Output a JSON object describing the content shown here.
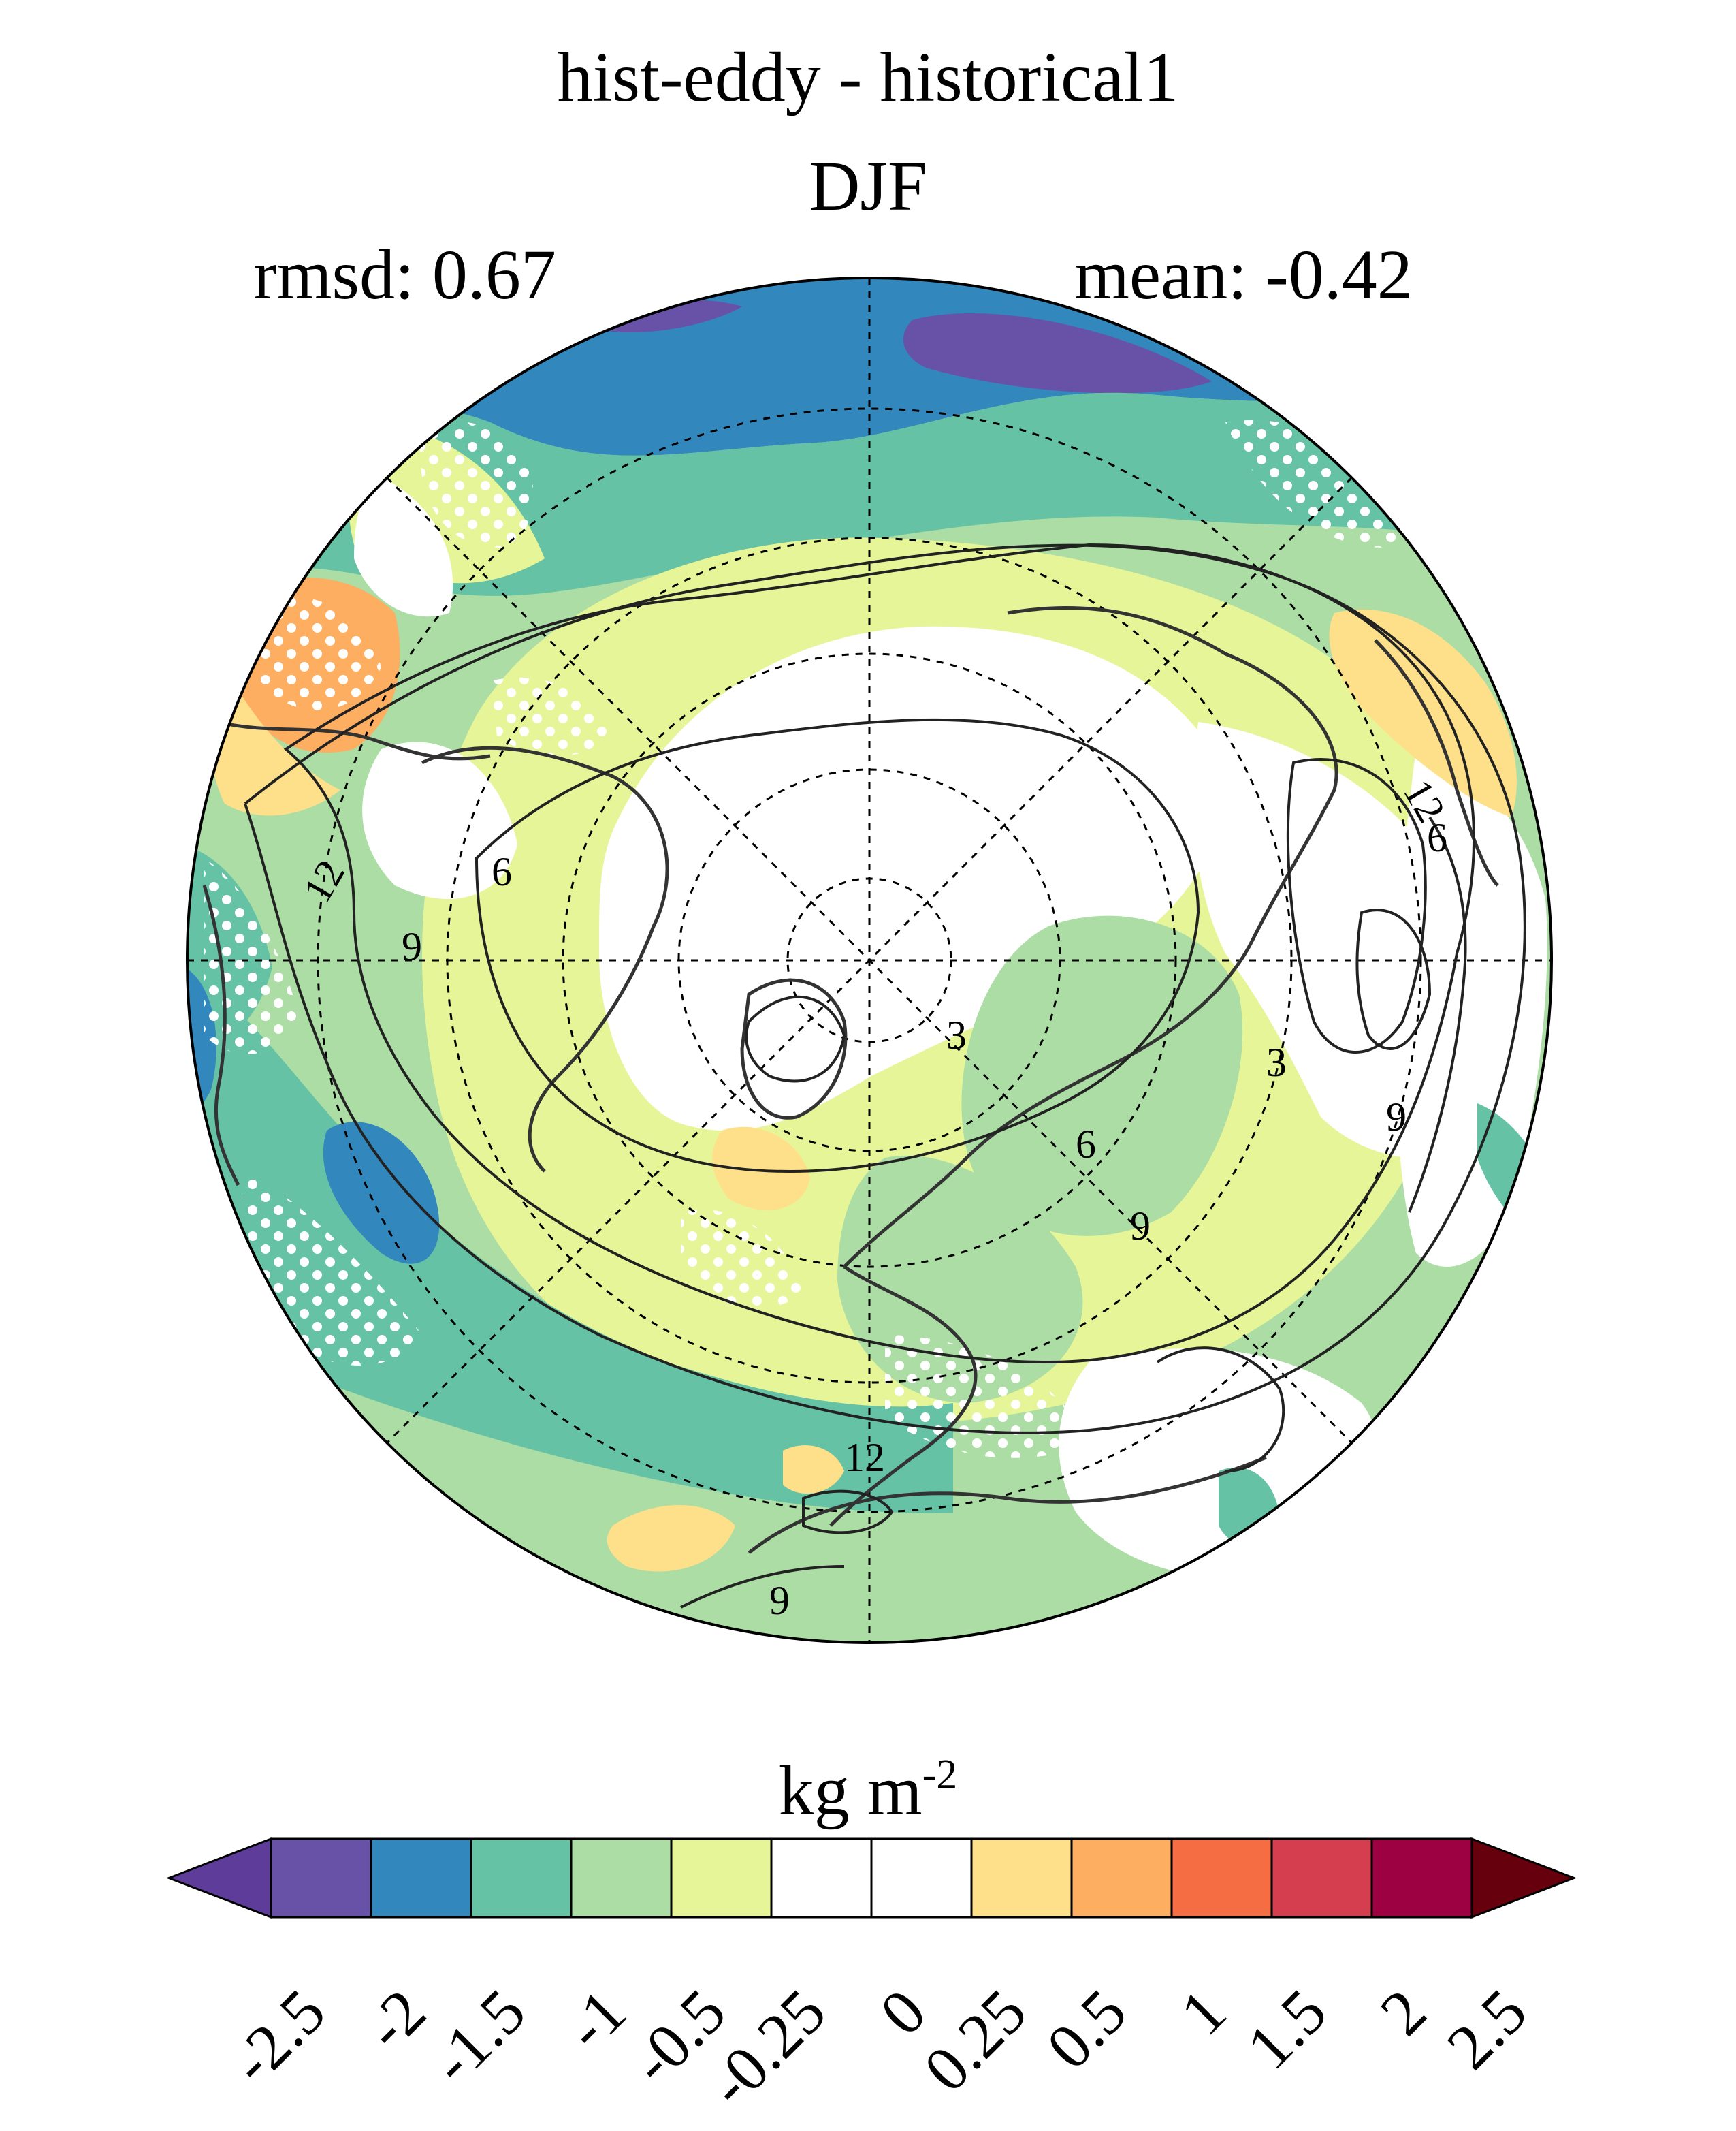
{
  "title": "hist-eddy - historical1",
  "season": "DJF",
  "stats": {
    "rmsd": "rmsd: 0.67",
    "mean": "mean: -0.42"
  },
  "colorbar": {
    "units": "kg m",
    "units_exp": "-2",
    "ticks": [
      "-2.5",
      "-2",
      "-1.5",
      "-1",
      "-0.5",
      "-0.25",
      "0",
      "0.25",
      "0.5",
      "1",
      "1.5",
      "2",
      "2.5"
    ],
    "colors": [
      "#5e3c99",
      "#6752a8",
      "#3288bd",
      "#66c2a5",
      "#abdda4",
      "#e6f598",
      "#ffffff",
      "#ffffff",
      "#fee08b",
      "#fdae61",
      "#f46d43",
      "#d53e4f",
      "#9e0142",
      "#67000d"
    ]
  },
  "contour_labels": [
    "12",
    "9",
    "6",
    "3",
    "12",
    "6",
    "9",
    "6",
    "9",
    "3",
    "12",
    "9"
  ]
}
